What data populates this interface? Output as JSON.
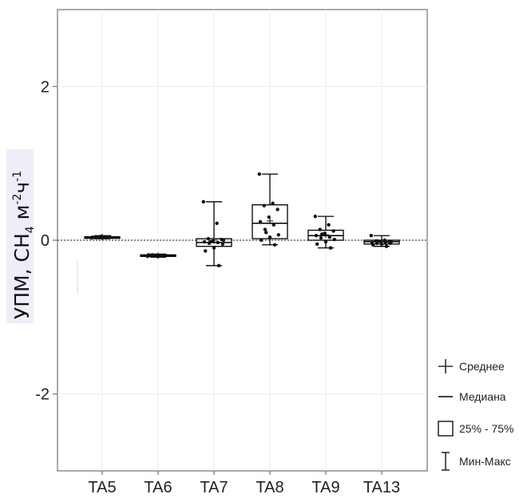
{
  "chart_data": {
    "type": "box",
    "ylabel": {
      "parts": [
        {
          "text": "УПМ, CH",
          "style": "normal"
        },
        {
          "text": "4",
          "style": "sub"
        },
        {
          "text": " м",
          "style": "normal"
        },
        {
          "text": "-2",
          "style": "sup"
        },
        {
          "text": "ч",
          "style": "normal"
        },
        {
          "text": "-1",
          "style": "sup"
        }
      ]
    },
    "ylim": [
      -3.0,
      3.0
    ],
    "yticks": [
      {
        "value": 2,
        "label": "2"
      },
      {
        "value": 0,
        "label": "0"
      },
      {
        "value": -2,
        "label": "-2"
      }
    ],
    "reference_line": {
      "y": 0,
      "style": "dotted"
    },
    "grid": true,
    "categories": [
      "TA5",
      "TA6",
      "TA7",
      "TA8",
      "TA9",
      "TA13"
    ],
    "boxes": [
      {
        "name": "TA5",
        "min": 0.02,
        "q1": 0.03,
        "median": 0.04,
        "q3": 0.045,
        "max": 0.06,
        "mean": 0.04,
        "points": [
          0.03,
          0.035,
          0.04,
          0.045,
          0.05,
          0.04
        ]
      },
      {
        "name": "TA6",
        "min": -0.22,
        "q1": -0.21,
        "median": -0.2,
        "q3": -0.19,
        "max": -0.18,
        "mean": -0.2,
        "points": [
          -0.21,
          -0.2,
          -0.19,
          -0.2,
          -0.21,
          -0.19,
          -0.2
        ]
      },
      {
        "name": "TA7",
        "min": -0.33,
        "q1": -0.08,
        "median": -0.03,
        "q3": 0.02,
        "max": 0.5,
        "mean": 0.0,
        "points": [
          0.5,
          0.22,
          0.02,
          0.01,
          -0.01,
          -0.02,
          -0.03,
          -0.04,
          -0.05,
          -0.1,
          -0.14,
          -0.33,
          -0.02,
          0.0
        ]
      },
      {
        "name": "TA8",
        "min": -0.06,
        "q1": 0.02,
        "median": 0.22,
        "q3": 0.46,
        "max": 0.86,
        "mean": 0.25,
        "points": [
          0.86,
          0.48,
          0.45,
          0.4,
          0.3,
          0.24,
          0.2,
          0.14,
          0.07,
          0.04,
          0.0,
          -0.06,
          0.1
        ]
      },
      {
        "name": "TA9",
        "min": -0.1,
        "q1": 0.0,
        "median": 0.06,
        "q3": 0.13,
        "max": 0.31,
        "mean": 0.07,
        "points": [
          0.31,
          0.2,
          0.14,
          0.12,
          0.09,
          0.06,
          0.04,
          0.03,
          0.01,
          -0.02,
          -0.05,
          -0.1,
          0.08
        ]
      },
      {
        "name": "TA13",
        "min": -0.08,
        "q1": -0.05,
        "median": -0.02,
        "q3": 0.0,
        "max": 0.06,
        "mean": -0.02,
        "points": [
          0.06,
          0.0,
          -0.01,
          -0.02,
          -0.02,
          -0.03,
          -0.03,
          -0.04,
          -0.04,
          -0.05,
          -0.06,
          -0.08,
          -0.01,
          -0.02
        ]
      }
    ],
    "legend": {
      "placement": "right",
      "items": [
        {
          "symbol": "mean",
          "label": "Среднее"
        },
        {
          "symbol": "median",
          "label": "Медиана"
        },
        {
          "symbol": "box",
          "label": "25% - 75%"
        },
        {
          "symbol": "whisker",
          "label": "Мин-Макс"
        }
      ]
    },
    "colors": {
      "box": "#000000",
      "axis": "#555555",
      "grid": "#ececec",
      "highlight": "#eeeef8"
    }
  }
}
